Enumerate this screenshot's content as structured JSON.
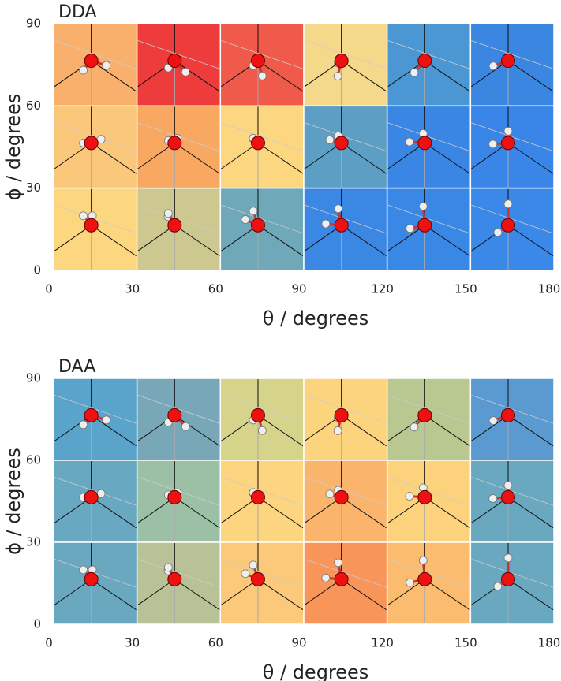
{
  "chart_data": [
    {
      "type": "heatmap",
      "title": "DDA",
      "xlabel": "θ / degrees",
      "ylabel": "ϕ / degrees",
      "xlim": [
        0,
        180
      ],
      "ylim": [
        0,
        90
      ],
      "xticks": [
        0,
        30,
        60,
        90,
        120,
        150,
        180
      ],
      "yticks": [
        0,
        30,
        60,
        90
      ],
      "cell_colors": [
        [
          "#f8b06c",
          "#ee3b3c",
          "#ef5a4a",
          "#f5d98a",
          "#4a97d4",
          "#3a86e0"
        ],
        [
          "#fbc77a",
          "#f9a862",
          "#fdd680",
          "#5d9ec4",
          "#3a86e4",
          "#3a86e8"
        ],
        [
          "#fdd680",
          "#ccc890",
          "#6fa8b8",
          "#3a88e4",
          "#3a88e6",
          "#3a88e8"
        ]
      ]
    },
    {
      "type": "heatmap",
      "title": "DAA",
      "xlabel": "θ / degrees",
      "ylabel": "ϕ / degrees",
      "xlim": [
        0,
        180
      ],
      "ylim": [
        0,
        90
      ],
      "xticks": [
        0,
        30,
        60,
        90,
        120,
        150,
        180
      ],
      "yticks": [
        0,
        30,
        60,
        90
      ],
      "cell_colors": [
        [
          "#5aa4cc",
          "#78a8b8",
          "#d6d48a",
          "#fdd47e",
          "#b8c890",
          "#5a9ad0"
        ],
        [
          "#68a8c0",
          "#9cc0a6",
          "#fdd480",
          "#fbb46c",
          "#fdd27c",
          "#6aa8c0"
        ],
        [
          "#6aa8c0",
          "#b8c296",
          "#fcc87a",
          "#f8965a",
          "#fbbc70",
          "#6aa8c0"
        ]
      ]
    }
  ]
}
